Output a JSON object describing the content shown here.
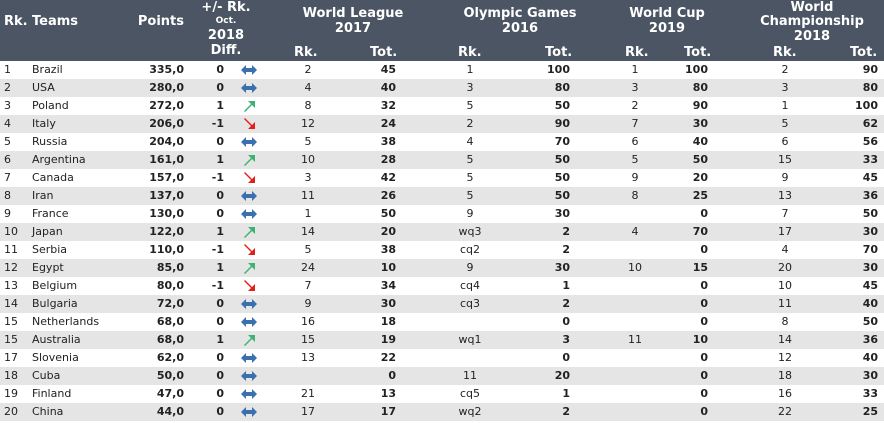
{
  "header": {
    "rank": "Rk.",
    "teams": "Teams",
    "points": "Points",
    "diff_line1": "+/- Rk.",
    "diff_line2": "Oct.",
    "diff_line3": "2018",
    "diff_line4": "Diff.",
    "world_league": "World League",
    "world_league_year": "2017",
    "olympic_games": "Olympic Games",
    "olympic_games_year": "2016",
    "world_cup": "World Cup",
    "world_cup_year": "2019",
    "world_championship": "World",
    "world_championship_2": "Championship",
    "world_championship_year": "2018",
    "sub_rk": "Rk.",
    "sub_tot": "Tot."
  },
  "colors": {
    "header_bg": "#4b5563",
    "stripe": "#e5e5e5",
    "arrow_up": "#3cb371",
    "arrow_down": "#e0201c",
    "arrow_same": "#3a6fb0"
  },
  "rows": [
    {
      "rk": "1",
      "team": "Brazil",
      "points": "335,0",
      "diff": "0",
      "trend": "same",
      "wl_rk": "2",
      "wl_tot": "45",
      "og_rk": "1",
      "og_tot": "100",
      "wc_rk": "1",
      "wc_tot": "100",
      "wch_rk": "2",
      "wch_tot": "90"
    },
    {
      "rk": "2",
      "team": "USA",
      "points": "280,0",
      "diff": "0",
      "trend": "same",
      "wl_rk": "4",
      "wl_tot": "40",
      "og_rk": "3",
      "og_tot": "80",
      "wc_rk": "3",
      "wc_tot": "80",
      "wch_rk": "3",
      "wch_tot": "80"
    },
    {
      "rk": "3",
      "team": "Poland",
      "points": "272,0",
      "diff": "1",
      "trend": "up",
      "wl_rk": "8",
      "wl_tot": "32",
      "og_rk": "5",
      "og_tot": "50",
      "wc_rk": "2",
      "wc_tot": "90",
      "wch_rk": "1",
      "wch_tot": "100"
    },
    {
      "rk": "4",
      "team": "Italy",
      "points": "206,0",
      "diff": "-1",
      "trend": "down",
      "wl_rk": "12",
      "wl_tot": "24",
      "og_rk": "2",
      "og_tot": "90",
      "wc_rk": "7",
      "wc_tot": "30",
      "wch_rk": "5",
      "wch_tot": "62"
    },
    {
      "rk": "5",
      "team": "Russia",
      "points": "204,0",
      "diff": "0",
      "trend": "same",
      "wl_rk": "5",
      "wl_tot": "38",
      "og_rk": "4",
      "og_tot": "70",
      "wc_rk": "6",
      "wc_tot": "40",
      "wch_rk": "6",
      "wch_tot": "56"
    },
    {
      "rk": "6",
      "team": "Argentina",
      "points": "161,0",
      "diff": "1",
      "trend": "up",
      "wl_rk": "10",
      "wl_tot": "28",
      "og_rk": "5",
      "og_tot": "50",
      "wc_rk": "5",
      "wc_tot": "50",
      "wch_rk": "15",
      "wch_tot": "33"
    },
    {
      "rk": "7",
      "team": "Canada",
      "points": "157,0",
      "diff": "-1",
      "trend": "down",
      "wl_rk": "3",
      "wl_tot": "42",
      "og_rk": "5",
      "og_tot": "50",
      "wc_rk": "9",
      "wc_tot": "20",
      "wch_rk": "9",
      "wch_tot": "45"
    },
    {
      "rk": "8",
      "team": "Iran",
      "points": "137,0",
      "diff": "0",
      "trend": "same",
      "wl_rk": "11",
      "wl_tot": "26",
      "og_rk": "5",
      "og_tot": "50",
      "wc_rk": "8",
      "wc_tot": "25",
      "wch_rk": "13",
      "wch_tot": "36"
    },
    {
      "rk": "9",
      "team": "France",
      "points": "130,0",
      "diff": "0",
      "trend": "same",
      "wl_rk": "1",
      "wl_tot": "50",
      "og_rk": "9",
      "og_tot": "30",
      "wc_rk": "",
      "wc_tot": "0",
      "wch_rk": "7",
      "wch_tot": "50"
    },
    {
      "rk": "10",
      "team": "Japan",
      "points": "122,0",
      "diff": "1",
      "trend": "up",
      "wl_rk": "14",
      "wl_tot": "20",
      "og_rk": "wq3",
      "og_tot": "2",
      "wc_rk": "4",
      "wc_tot": "70",
      "wch_rk": "17",
      "wch_tot": "30"
    },
    {
      "rk": "11",
      "team": "Serbia",
      "points": "110,0",
      "diff": "-1",
      "trend": "down",
      "wl_rk": "5",
      "wl_tot": "38",
      "og_rk": "cq2",
      "og_tot": "2",
      "wc_rk": "",
      "wc_tot": "0",
      "wch_rk": "4",
      "wch_tot": "70"
    },
    {
      "rk": "12",
      "team": "Egypt",
      "points": "85,0",
      "diff": "1",
      "trend": "up",
      "wl_rk": "24",
      "wl_tot": "10",
      "og_rk": "9",
      "og_tot": "30",
      "wc_rk": "10",
      "wc_tot": "15",
      "wch_rk": "20",
      "wch_tot": "30"
    },
    {
      "rk": "13",
      "team": "Belgium",
      "points": "80,0",
      "diff": "-1",
      "trend": "down",
      "wl_rk": "7",
      "wl_tot": "34",
      "og_rk": "cq4",
      "og_tot": "1",
      "wc_rk": "",
      "wc_tot": "0",
      "wch_rk": "10",
      "wch_tot": "45"
    },
    {
      "rk": "14",
      "team": "Bulgaria",
      "points": "72,0",
      "diff": "0",
      "trend": "same",
      "wl_rk": "9",
      "wl_tot": "30",
      "og_rk": "cq3",
      "og_tot": "2",
      "wc_rk": "",
      "wc_tot": "0",
      "wch_rk": "11",
      "wch_tot": "40"
    },
    {
      "rk": "15",
      "team": "Netherlands",
      "points": "68,0",
      "diff": "0",
      "trend": "same",
      "wl_rk": "16",
      "wl_tot": "18",
      "og_rk": "",
      "og_tot": "0",
      "wc_rk": "",
      "wc_tot": "0",
      "wch_rk": "8",
      "wch_tot": "50"
    },
    {
      "rk": "15",
      "team": "Australia",
      "points": "68,0",
      "diff": "1",
      "trend": "up",
      "wl_rk": "15",
      "wl_tot": "19",
      "og_rk": "wq1",
      "og_tot": "3",
      "wc_rk": "11",
      "wc_tot": "10",
      "wch_rk": "14",
      "wch_tot": "36"
    },
    {
      "rk": "17",
      "team": "Slovenia",
      "points": "62,0",
      "diff": "0",
      "trend": "same",
      "wl_rk": "13",
      "wl_tot": "22",
      "og_rk": "",
      "og_tot": "0",
      "wc_rk": "",
      "wc_tot": "0",
      "wch_rk": "12",
      "wch_tot": "40"
    },
    {
      "rk": "18",
      "team": "Cuba",
      "points": "50,0",
      "diff": "0",
      "trend": "same",
      "wl_rk": "",
      "wl_tot": "0",
      "og_rk": "11",
      "og_tot": "20",
      "wc_rk": "",
      "wc_tot": "0",
      "wch_rk": "18",
      "wch_tot": "30"
    },
    {
      "rk": "19",
      "team": "Finland",
      "points": "47,0",
      "diff": "0",
      "trend": "same",
      "wl_rk": "21",
      "wl_tot": "13",
      "og_rk": "cq5",
      "og_tot": "1",
      "wc_rk": "",
      "wc_tot": "0",
      "wch_rk": "16",
      "wch_tot": "33"
    },
    {
      "rk": "20",
      "team": "China",
      "points": "44,0",
      "diff": "0",
      "trend": "same",
      "wl_rk": "17",
      "wl_tot": "17",
      "og_rk": "wq2",
      "og_tot": "2",
      "wc_rk": "",
      "wc_tot": "0",
      "wch_rk": "22",
      "wch_tot": "25"
    }
  ]
}
